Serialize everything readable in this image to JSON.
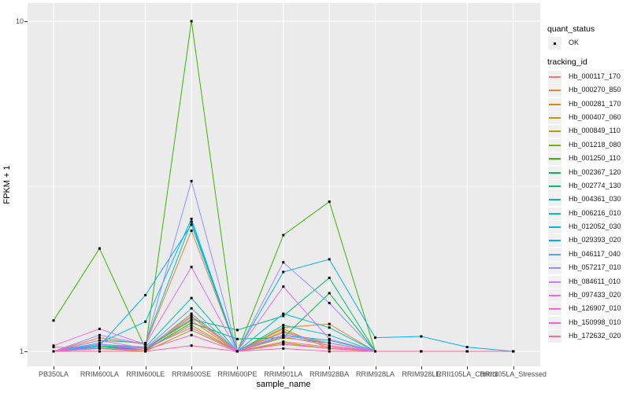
{
  "figure": {
    "y_axis": {
      "title": "FPKM + 1",
      "ticks": [
        "10",
        "1"
      ]
    },
    "x_axis": {
      "title": "sample_name"
    },
    "legend": {
      "quant_status": {
        "title": "quant_status",
        "items": [
          {
            "label": "OK"
          }
        ]
      },
      "tracking_id": {
        "title": "tracking_id"
      }
    }
  },
  "colors": {
    "panel_bg": "#EBEBEB",
    "grid": "#FFFFFF",
    "marker": "#000000",
    "tick_text": "#4D4D4D"
  },
  "chart_data": {
    "type": "line",
    "title": "",
    "xlabel": "sample_name",
    "ylabel": "FPKM + 1",
    "y_scale": "log10",
    "ylim": [
      1,
      10
    ],
    "y_ticks": [
      1,
      10
    ],
    "y_minor_break": 3.162,
    "grid": true,
    "legend_position": "right",
    "point_marker": "small black square (quant_status = OK)",
    "categories": [
      "PB350LA",
      "RRIM600LA",
      "RRIM600LE",
      "RRIM600SE",
      "RRIM600PE",
      "RRIM901LA",
      "RRIM928BA",
      "RRIM928LA",
      "RRIM928LE",
      "RRII105LA_Control",
      "RRII105LA_Stressed"
    ],
    "series": [
      {
        "name": "Hb_000117_170",
        "color": "#F8766D",
        "values": [
          1.03,
          1.02,
          1.01,
          1.27,
          1.0,
          1.07,
          1.03,
          1.0,
          1.0,
          1.0,
          1.0
        ]
      },
      {
        "name": "Hb_000270_850",
        "color": "#EA8331",
        "values": [
          1.0,
          1.1,
          1.05,
          2.32,
          1.0,
          1.18,
          1.21,
          1.0,
          1.0,
          1.0,
          1.0
        ]
      },
      {
        "name": "Hb_000281_170",
        "color": "#D89000",
        "values": [
          1.0,
          1.05,
          1.02,
          1.24,
          1.0,
          1.15,
          1.04,
          1.0,
          1.0,
          1.0,
          1.0
        ]
      },
      {
        "name": "Hb_000407_060",
        "color": "#C09B00",
        "values": [
          1.0,
          1.03,
          1.01,
          1.2,
          1.0,
          1.17,
          1.02,
          1.0,
          1.0,
          1.0,
          1.0
        ]
      },
      {
        "name": "Hb_000849_110",
        "color": "#A3A500",
        "values": [
          1.0,
          1.02,
          1.0,
          1.16,
          1.0,
          1.06,
          1.02,
          1.0,
          1.0,
          1.0,
          1.0
        ]
      },
      {
        "name": "Hb_001218_080",
        "color": "#7CAE00",
        "values": [
          1.0,
          1.04,
          1.01,
          1.3,
          1.0,
          1.1,
          1.06,
          1.0,
          1.0,
          1.0,
          1.0
        ]
      },
      {
        "name": "Hb_001250_110",
        "color": "#39B600",
        "values": [
          1.24,
          2.05,
          1.02,
          10.0,
          1.0,
          2.25,
          2.84,
          1.0,
          1.0,
          1.0,
          1.0
        ]
      },
      {
        "name": "Hb_002367_120",
        "color": "#00BB4E",
        "values": [
          1.0,
          1.03,
          1.01,
          1.22,
          1.09,
          1.1,
          1.5,
          1.0,
          1.0,
          1.0,
          1.0
        ]
      },
      {
        "name": "Hb_002774_130",
        "color": "#00BF7D",
        "values": [
          1.0,
          1.04,
          1.02,
          1.25,
          1.16,
          1.28,
          1.67,
          1.0,
          1.0,
          1.0,
          1.0
        ]
      },
      {
        "name": "Hb_004361_030",
        "color": "#00C1A7",
        "values": [
          1.0,
          1.05,
          1.03,
          1.45,
          1.0,
          1.12,
          1.08,
          1.0,
          1.0,
          1.0,
          1.0
        ]
      },
      {
        "name": "Hb_006216_010",
        "color": "#00BFC4",
        "values": [
          1.0,
          1.08,
          1.06,
          2.47,
          1.0,
          1.2,
          1.12,
          1.0,
          1.0,
          1.0,
          1.0
        ]
      },
      {
        "name": "Hb_012052_030",
        "color": "#00BADE",
        "values": [
          1.0,
          1.06,
          1.23,
          2.52,
          1.0,
          1.3,
          1.18,
          1.0,
          1.0,
          1.0,
          1.0
        ]
      },
      {
        "name": "Hb_029393_020",
        "color": "#00B0F6",
        "values": [
          1.0,
          1.04,
          1.48,
          2.42,
          1.0,
          1.74,
          1.9,
          1.1,
          1.11,
          1.03,
          1.0
        ]
      },
      {
        "name": "Hb_046117_040",
        "color": "#619CFF",
        "values": [
          1.0,
          1.03,
          1.02,
          1.35,
          1.0,
          1.12,
          1.06,
          1.0,
          1.0,
          1.0,
          1.0
        ]
      },
      {
        "name": "Hb_057217_010",
        "color": "#9590FF",
        "values": [
          1.0,
          1.12,
          1.05,
          3.28,
          1.0,
          1.86,
          1.4,
          1.0,
          1.0,
          1.0,
          1.0
        ]
      },
      {
        "name": "Hb_084611_010",
        "color": "#C77CFF",
        "values": [
          1.0,
          1.05,
          1.02,
          1.28,
          1.0,
          1.14,
          1.06,
          1.0,
          1.0,
          1.0,
          1.0
        ]
      },
      {
        "name": "Hb_097433_020",
        "color": "#E76BF3",
        "values": [
          1.04,
          1.17,
          1.05,
          1.8,
          1.0,
          1.57,
          1.09,
          1.0,
          1.0,
          1.0,
          1.0
        ]
      },
      {
        "name": "Hb_126907_010",
        "color": "#FA62DB",
        "values": [
          1.0,
          1.08,
          1.02,
          1.18,
          1.0,
          1.11,
          1.04,
          1.0,
          1.0,
          1.0,
          1.0
        ]
      },
      {
        "name": "Hb_150998_010",
        "color": "#FF61C3",
        "values": [
          1.0,
          1.02,
          1.01,
          1.12,
          1.0,
          1.05,
          1.02,
          1.0,
          1.0,
          1.0,
          1.0
        ]
      },
      {
        "name": "Hb_172632_020",
        "color": "#FF689E",
        "values": [
          1.0,
          1.0,
          1.0,
          1.04,
          1.0,
          1.02,
          1.0,
          1.0,
          1.0,
          1.0,
          1.0
        ]
      }
    ]
  }
}
